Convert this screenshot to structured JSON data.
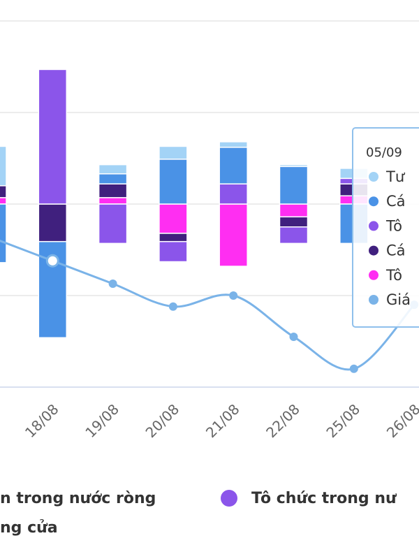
{
  "chart_data": {
    "type": "bar",
    "categories": [
      null,
      "18/08",
      "19/08",
      "20/08",
      "21/08",
      "22/08",
      "25/08",
      "26/08"
    ],
    "ylim": [
      -2,
      2
    ],
    "yticks": [
      -2,
      -1,
      0,
      1,
      2
    ],
    "y2lim": [
      0,
      4
    ],
    "grid": true,
    "series": [
      {
        "color": "#a3d3f6",
        "values": [
          0.43,
          null,
          0.1,
          0.14,
          0.06,
          0.02,
          0.11,
          null
        ]
      },
      {
        "name": "n trong nước ròng",
        "color": "#4a92e6",
        "values": [
          -0.64,
          -1.05,
          0.11,
          0.49,
          0.4,
          0.41,
          -0.43,
          null
        ]
      },
      {
        "name": "Tô chức trong nư",
        "color": "#8b55ea",
        "values": [
          null,
          1.47,
          -0.43,
          -0.22,
          0.22,
          -0.18,
          0.06,
          null
        ]
      },
      {
        "color": "#40207e",
        "values": [
          0.13,
          -0.41,
          0.15,
          -0.09,
          null,
          -0.11,
          0.13,
          null
        ]
      },
      {
        "color": "#ff2ef2",
        "values": [
          0.07,
          null,
          0.07,
          -0.32,
          -0.68,
          -0.14,
          0.09,
          null
        ]
      },
      {
        "name": "ng cửa",
        "type": "line",
        "axis": "y2",
        "color": "#7ab3e8",
        "values": [
          1.63,
          1.38,
          1.13,
          0.88,
          1.0,
          0.55,
          0.2,
          0.9
        ]
      }
    ],
    "tooltip": {
      "title": "05/09",
      "items": [
        "Tư",
        "Cá",
        "Tô",
        "Cá",
        "Tô",
        "Giá"
      ]
    }
  }
}
